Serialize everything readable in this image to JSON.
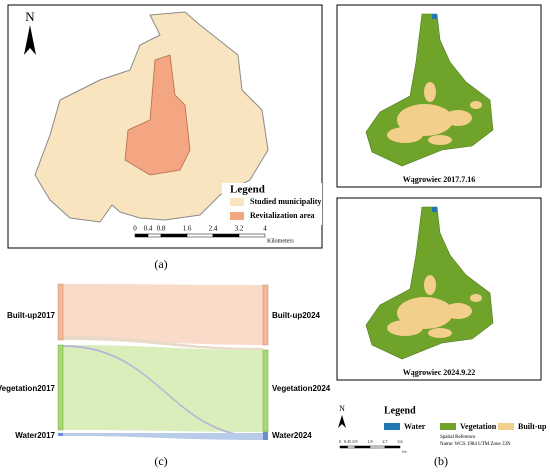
{
  "panel_a": {
    "north": "N",
    "legend_title": "Legend",
    "legend_items": [
      "Studied municipality",
      "Revitalization area"
    ],
    "scale_ticks": [
      "0",
      "0.4",
      "0.8",
      "1.6",
      "2.4",
      "3.2",
      "4"
    ],
    "scale_unit": "Kilometers",
    "caption": "(a)"
  },
  "panel_b": {
    "maps": [
      {
        "title": "Wągrowiec 2017.7.16"
      },
      {
        "title": "Wągrowiec 2024.9.22"
      }
    ],
    "north": "N",
    "legend_title": "Legend",
    "legend_items": [
      "Water",
      "Vegetation",
      "Built-up"
    ],
    "scale_ticks": [
      "0",
      "0.45",
      "0.9",
      "1.8",
      "2.7",
      "3.6"
    ],
    "scale_unit": "Km",
    "reference": [
      "Spatial Reference",
      "Name: WGS 1984 UTM Zone 33N"
    ],
    "caption": "(b)"
  },
  "panel_c": {
    "left_nodes": [
      "Built-up2017",
      "Vegetation2017",
      "Water2017"
    ],
    "right_nodes": [
      "Built-up2024",
      "Vegetation2024",
      "Water2024"
    ],
    "caption": "(c)"
  }
}
